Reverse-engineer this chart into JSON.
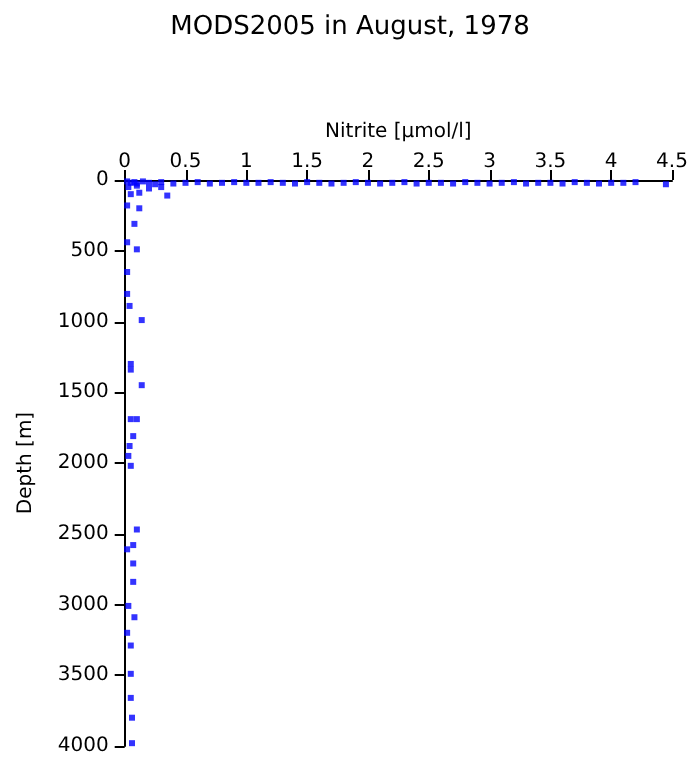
{
  "chart_data": {
    "type": "scatter",
    "title": "MODS2005 in August, 1978",
    "xlabel": "Nitrite [µmol/l]",
    "ylabel": "Depth [m]",
    "xlim": [
      0,
      4.5
    ],
    "xticks": [
      0,
      0.5,
      1,
      1.5,
      2,
      2.5,
      3,
      3.5,
      4,
      4.5
    ],
    "ylim": [
      4000,
      0
    ],
    "yticks": [
      0,
      500,
      1000,
      1500,
      2000,
      2500,
      3000,
      3500,
      4000
    ],
    "marker": "square",
    "grid": false,
    "series": [
      {
        "color": "#0000ff",
        "x": [
          0.02,
          0.05,
          0.08,
          0.1,
          0.15,
          0.2,
          0.25,
          0.3,
          0.4,
          0.5,
          0.6,
          0.7,
          0.8,
          0.9,
          1.0,
          1.1,
          1.2,
          1.3,
          1.4,
          1.5,
          1.6,
          1.7,
          1.8,
          1.9,
          2.0,
          2.1,
          2.2,
          2.3,
          2.4,
          2.5,
          2.6,
          2.7,
          2.8,
          2.9,
          3.0,
          3.1,
          3.2,
          3.3,
          3.4,
          3.5,
          3.6,
          3.7,
          3.8,
          3.9,
          4.0,
          4.1,
          4.2,
          4.45,
          0.03,
          0.1,
          0.2,
          0.3,
          0.05,
          0.12,
          0.35,
          0.02,
          0.12,
          0.08,
          0.02,
          0.1,
          0.02,
          0.02,
          0.04,
          0.14,
          0.05,
          0.05,
          0.14,
          0.05,
          0.1,
          0.07,
          0.04,
          0.03,
          0.05,
          0.1,
          0.07,
          0.02,
          0.07,
          0.07,
          0.03,
          0.08,
          0.02,
          0.05,
          0.05,
          0.05,
          0.06,
          0.06
        ],
        "values": [
          10,
          20,
          15,
          25,
          10,
          20,
          30,
          15,
          25,
          20,
          15,
          25,
          20,
          15,
          20,
          20,
          15,
          20,
          25,
          15,
          20,
          25,
          20,
          15,
          20,
          25,
          20,
          15,
          25,
          20,
          20,
          25,
          15,
          20,
          25,
          20,
          15,
          25,
          20,
          20,
          25,
          15,
          20,
          25,
          20,
          20,
          15,
          30,
          50,
          40,
          60,
          50,
          100,
          90,
          110,
          180,
          200,
          310,
          440,
          490,
          650,
          805,
          890,
          990,
          1300,
          1340,
          1450,
          1690,
          1690,
          1810,
          1880,
          1950,
          2020,
          2470,
          2580,
          2610,
          2710,
          2840,
          3010,
          3090,
          3200,
          3290,
          3490,
          3660,
          3800,
          3980
        ]
      }
    ]
  }
}
